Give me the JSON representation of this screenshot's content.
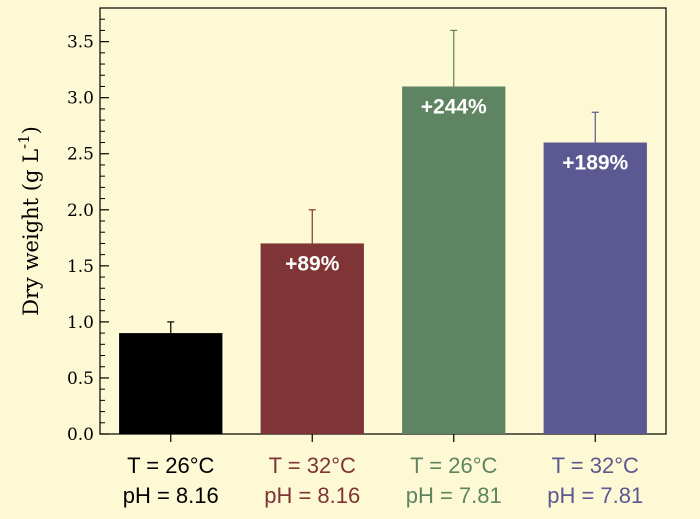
{
  "chart_data": {
    "type": "bar",
    "ylabel": "Dry weight (g L",
    "ylabel_sup": "-1",
    "ylabel_close": ")",
    "ylim": [
      0,
      3.8
    ],
    "yticks": [
      {
        "value": 0.0,
        "label": "0.0"
      },
      {
        "value": 0.5,
        "label": "0.5"
      },
      {
        "value": 1.0,
        "label": "1.0"
      },
      {
        "value": 1.5,
        "label": "1.5"
      },
      {
        "value": 2.0,
        "label": "2.0"
      },
      {
        "value": 2.5,
        "label": "2.5"
      },
      {
        "value": 3.0,
        "label": "3.0"
      },
      {
        "value": 3.5,
        "label": "3.5"
      }
    ],
    "grid": false,
    "bars": [
      {
        "line1": "T = 26°C",
        "line2": "pH = 8.16",
        "value": 0.9,
        "error": 0.1,
        "annotation": "",
        "color": "#000000",
        "label_color": "#000000"
      },
      {
        "line1": "T = 32°C",
        "line2": "pH = 8.16",
        "value": 1.7,
        "error": 0.3,
        "annotation": "+89%",
        "color": "#7f3535",
        "label_color": "#7f3535"
      },
      {
        "line1": "T = 26°C",
        "line2": "pH = 7.81",
        "value": 3.1,
        "error": 0.5,
        "annotation": "+244%",
        "color": "#5e8462",
        "label_color": "#5e8462"
      },
      {
        "line1": "T = 32°C",
        "line2": "pH = 7.81",
        "value": 2.6,
        "error": 0.27,
        "annotation": "+189%",
        "color": "#5b5892",
        "label_color": "#5b5892"
      }
    ]
  }
}
